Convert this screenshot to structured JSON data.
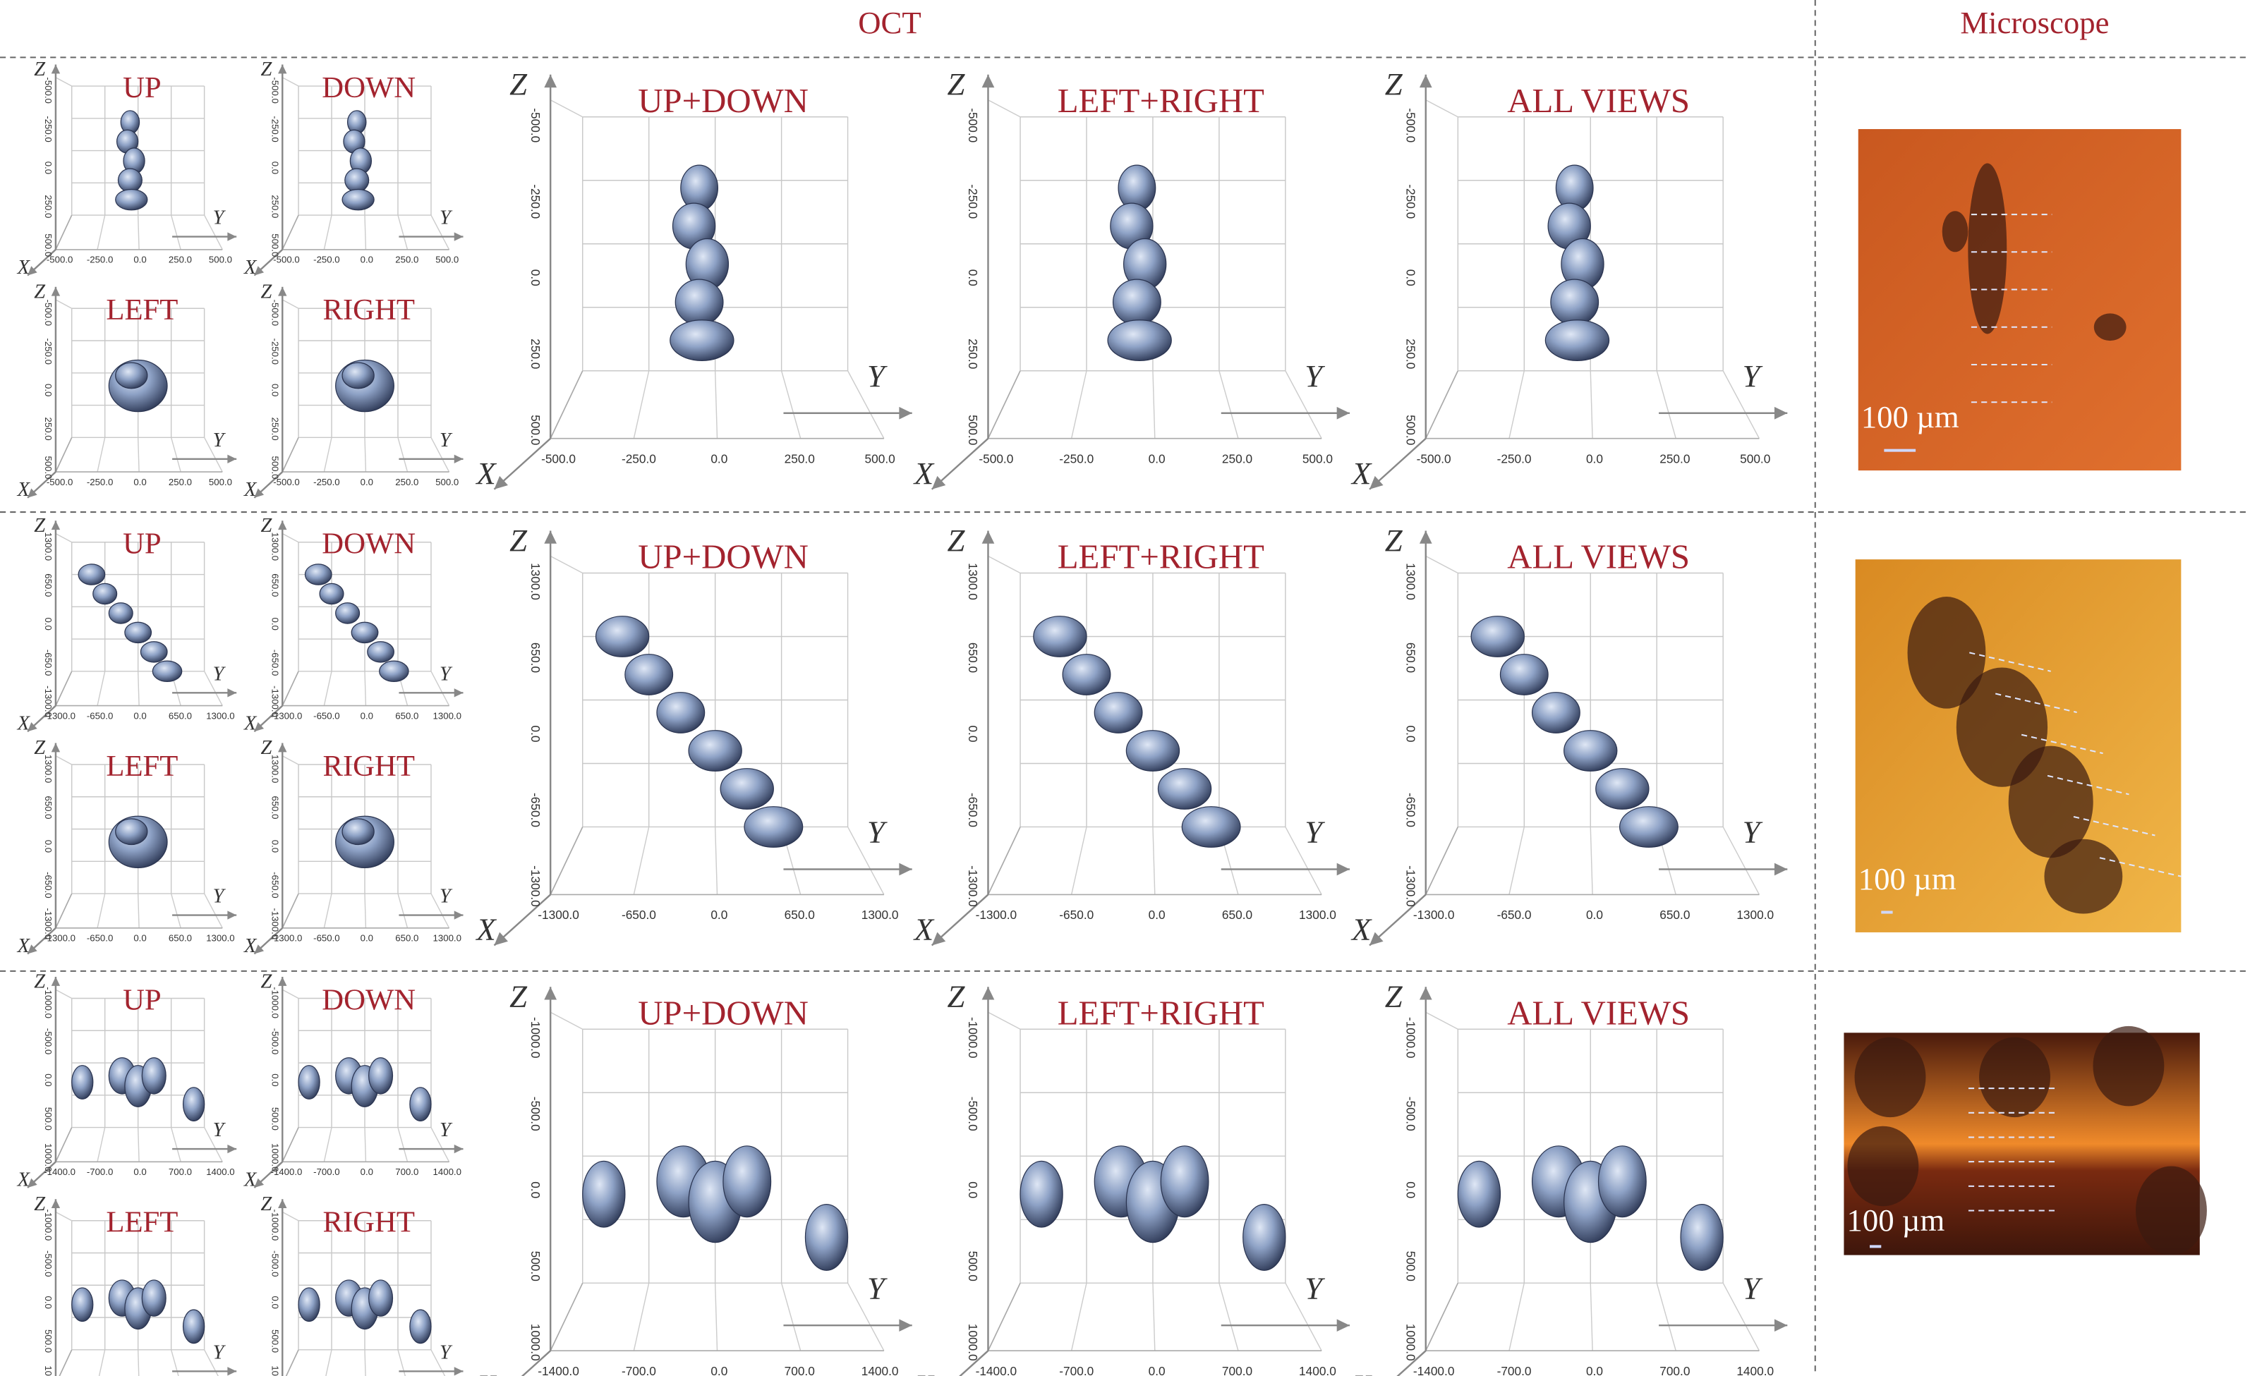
{
  "header": {
    "oct": "OCT",
    "microscope": "Microscope"
  },
  "axes": {
    "x": "X",
    "y": "Y",
    "z": "Z"
  },
  "rows": [
    {
      "panels": [
        "UP",
        "DOWN",
        "LEFT",
        "RIGHT",
        "UP+DOWN",
        "LEFT+RIGHT",
        "ALL VIEWS"
      ],
      "ticks": {
        "horizontal": [
          "-500.0",
          "-250.0",
          "0.0",
          "250.0",
          "500.0"
        ],
        "vertical": [
          "-500.0",
          "-250.0",
          "0.0",
          "250.0",
          "500.0"
        ]
      },
      "scale_label": "100 µm"
    },
    {
      "panels": [
        "UP",
        "DOWN",
        "LEFT",
        "RIGHT",
        "UP+DOWN",
        "LEFT+RIGHT",
        "ALL VIEWS"
      ],
      "ticks": {
        "horizontal": [
          "-1300.0",
          "-650.0",
          "0.0",
          "650.0",
          "1300.0"
        ],
        "vertical": [
          "1300.0",
          "650.0",
          "0.0",
          "-650.0",
          "-1300.0"
        ]
      },
      "scale_label": "100 µm"
    },
    {
      "panels": [
        "UP",
        "DOWN",
        "LEFT",
        "RIGHT",
        "UP+DOWN",
        "LEFT+RIGHT",
        "ALL VIEWS"
      ],
      "ticks": {
        "horizontal": [
          "-1400.0",
          "-700.0",
          "0.0",
          "700.0",
          "1400.0"
        ],
        "vertical": [
          "-1000.0",
          "-500.0",
          "0.0",
          "500.0",
          "1000.0"
        ]
      },
      "scale_label": "100 µm"
    }
  ]
}
